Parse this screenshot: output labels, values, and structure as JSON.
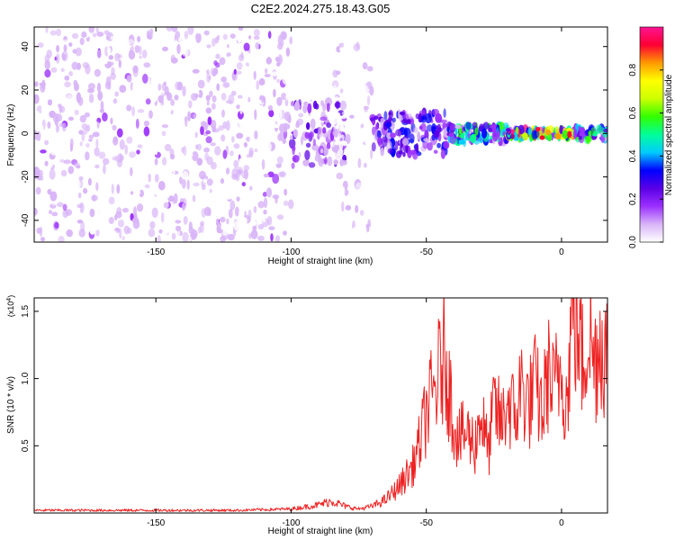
{
  "title": "C2E2.2024.275.18.43.G05",
  "chart_data": [
    {
      "type": "heatmap",
      "title": "",
      "xlabel": "Height of straight line (km)",
      "ylabel": "Frequency (Hz)",
      "xlim": [
        -195,
        17
      ],
      "ylim": [
        -50,
        49
      ],
      "xticks": [
        -150,
        -100,
        -50,
        0
      ],
      "yticks": [
        -40,
        -20,
        0,
        20,
        40
      ],
      "colorbar": {
        "label": "Normalized spectral amplitude",
        "range": [
          0,
          1
        ],
        "ticks": [
          "0.0",
          "0.2",
          "0.4",
          "0.6",
          "0.8"
        ],
        "colors": [
          "#ffffff",
          "#d8b4f8",
          "#9b30ff",
          "#5a00e6",
          "#0000ff",
          "#00ccff",
          "#00ff99",
          "#33ff00",
          "#ccff00",
          "#ffff00",
          "#ff9900",
          "#ff0033",
          "#ff1493"
        ]
      },
      "regions": [
        {
          "x": [
            -195,
            -100
          ],
          "freq_spread": 49,
          "amplitude": 0.15,
          "description": "scattered noise"
        },
        {
          "x": [
            -100,
            -80
          ],
          "freq_spread": 15,
          "amplitude": 0.25
        },
        {
          "x": [
            -85,
            -70
          ],
          "freq_spread": 45,
          "amplitude": 0.1
        },
        {
          "x": [
            -70,
            -42
          ],
          "freq_spread": 10,
          "amplitude": 0.35
        },
        {
          "x": [
            -42,
            -20
          ],
          "freq_spread": 4,
          "amplitude": 0.55
        },
        {
          "x": [
            -20,
            5
          ],
          "freq_spread": 2,
          "amplitude": 0.9
        },
        {
          "x": [
            5,
            17
          ],
          "freq_spread": 3,
          "amplitude": 0.55
        }
      ]
    },
    {
      "type": "line",
      "title": "",
      "xlabel": "Height of straight line (km)",
      "ylabel": "SNR (10 * v/v)",
      "yscale_label": "(x10",
      "yscale_exp": "4",
      "xlim": [
        -195,
        17
      ],
      "ylim": [
        0,
        1.6
      ],
      "xticks": [
        -150,
        -100,
        -50,
        0
      ],
      "yticks": [
        0.5,
        1.0,
        1.5
      ],
      "ytick_labels": [
        "0.5",
        "1.0",
        "1.5"
      ],
      "series": [
        {
          "color": "#ee2222",
          "x": [
            -195,
            -180,
            -160,
            -140,
            -120,
            -100,
            -90,
            -85,
            -80,
            -75,
            -70,
            -65,
            -60,
            -55,
            -52,
            -50,
            -47,
            -45,
            -43,
            -42,
            -40,
            -38,
            -35,
            -32,
            -30,
            -27,
            -25,
            -22,
            -20,
            -17,
            -15,
            -12,
            -10,
            -7,
            -5,
            -3,
            0,
            2,
            4,
            6,
            8,
            10,
            12,
            14,
            17
          ],
          "y": [
            0.02,
            0.02,
            0.02,
            0.02,
            0.02,
            0.03,
            0.06,
            0.09,
            0.05,
            0.03,
            0.05,
            0.1,
            0.2,
            0.35,
            0.55,
            0.75,
            0.9,
            1.05,
            1.2,
            1.0,
            0.7,
            0.55,
            0.6,
            0.5,
            0.75,
            0.45,
            0.8,
            0.65,
            0.85,
            0.7,
            0.95,
            0.8,
            0.95,
            0.75,
            1.05,
            0.9,
            1.1,
            0.8,
            1.55,
            1.35,
            1.1,
            1.45,
            1.1,
            1.3,
            1.2
          ]
        }
      ]
    }
  ]
}
